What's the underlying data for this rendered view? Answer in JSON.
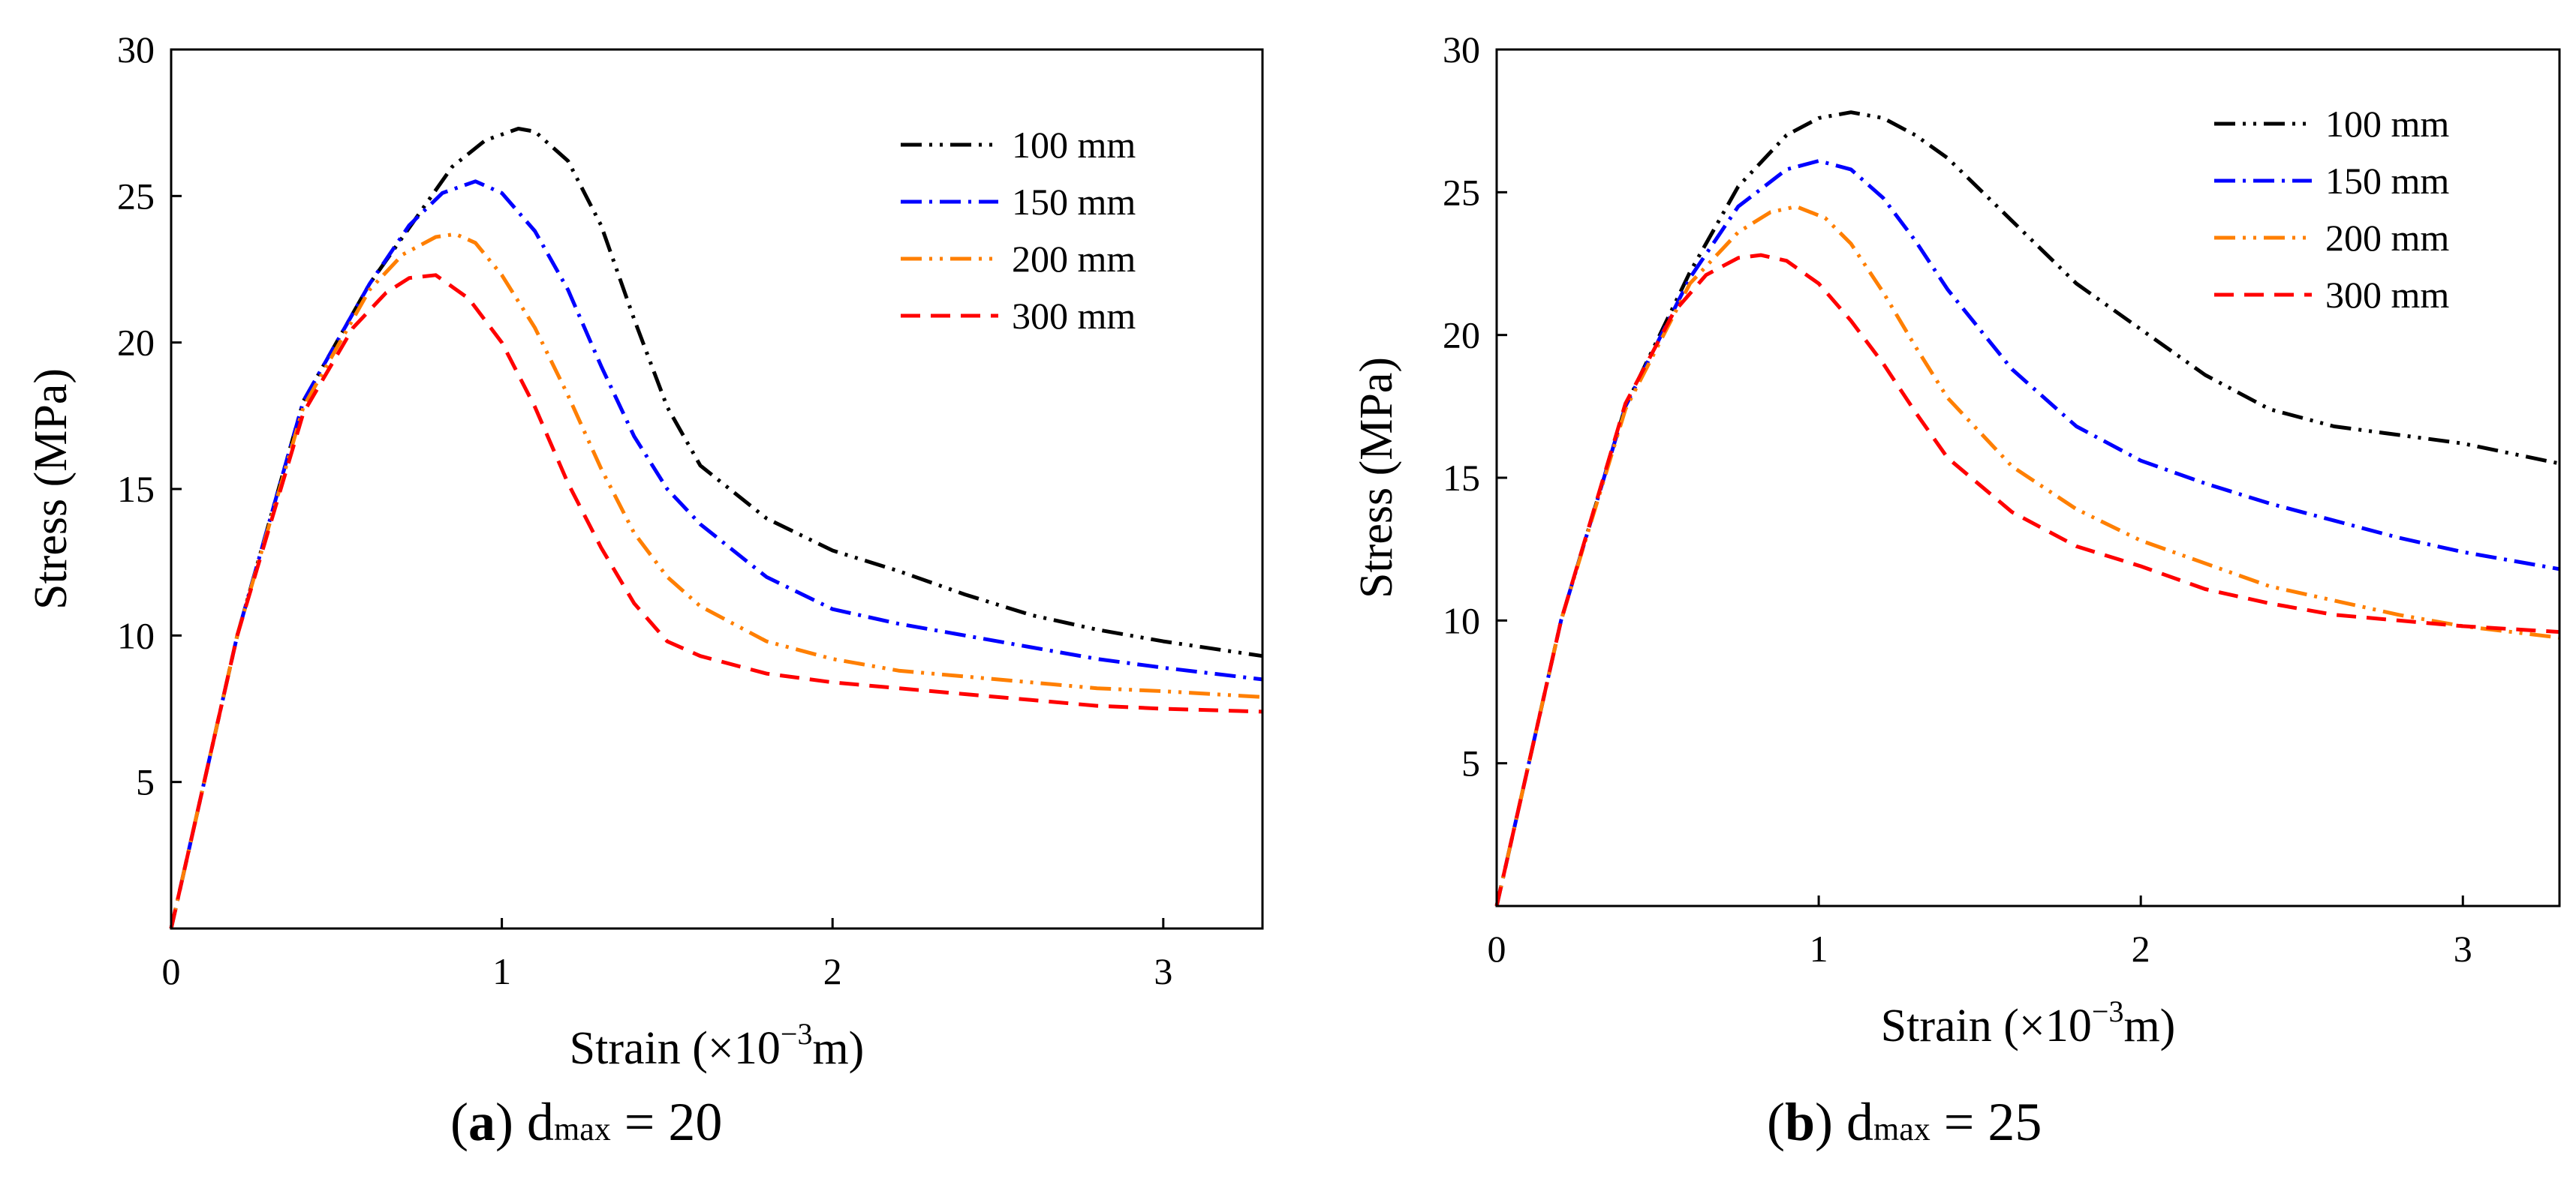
{
  "chart_data": [
    {
      "type": "line",
      "caption": {
        "open": "(",
        "letter": "a",
        "close": ")",
        "variable": "d",
        "subscript": "max",
        "rest": " = 20"
      },
      "xlabel": "Strain (×10",
      "xlabel_exp": "−3",
      "xlabel_end": "m)",
      "ylabel": "Stress (MPa)",
      "xlim": [
        0,
        3.3
      ],
      "ylim": [
        0,
        30
      ],
      "xticks": [
        "0",
        "1",
        "2",
        "3"
      ],
      "yticks": [
        "5",
        "10",
        "15",
        "20",
        "25",
        "30"
      ],
      "grid": false,
      "legend_position": "top-right",
      "series": [
        {
          "name": "100 mm",
          "color": "#000000",
          "dash": "dashdotdot",
          "points": [
            [
              0,
              0
            ],
            [
              0.2,
              10
            ],
            [
              0.4,
              18
            ],
            [
              0.6,
              22
            ],
            [
              0.75,
              24.4
            ],
            [
              0.85,
              26
            ],
            [
              0.95,
              26.9
            ],
            [
              1.05,
              27.3
            ],
            [
              1.1,
              27.2
            ],
            [
              1.2,
              26.2
            ],
            [
              1.3,
              24
            ],
            [
              1.4,
              20.8
            ],
            [
              1.5,
              17.8
            ],
            [
              1.6,
              15.8
            ],
            [
              1.8,
              14
            ],
            [
              2.0,
              12.9
            ],
            [
              2.2,
              12.2
            ],
            [
              2.4,
              11.4
            ],
            [
              2.6,
              10.7
            ],
            [
              2.8,
              10.2
            ],
            [
              3.0,
              9.8
            ],
            [
              3.3,
              9.3
            ]
          ]
        },
        {
          "name": "150 mm",
          "color": "#0000ff",
          "dash": "dashdot",
          "points": [
            [
              0,
              0
            ],
            [
              0.2,
              10
            ],
            [
              0.4,
              18
            ],
            [
              0.6,
              22
            ],
            [
              0.72,
              24
            ],
            [
              0.82,
              25.1
            ],
            [
              0.92,
              25.5
            ],
            [
              1.0,
              25.1
            ],
            [
              1.1,
              23.8
            ],
            [
              1.2,
              21.8
            ],
            [
              1.3,
              19.2
            ],
            [
              1.4,
              16.8
            ],
            [
              1.5,
              15
            ],
            [
              1.6,
              13.8
            ],
            [
              1.8,
              12
            ],
            [
              2.0,
              10.9
            ],
            [
              2.2,
              10.4
            ],
            [
              2.4,
              10
            ],
            [
              2.6,
              9.6
            ],
            [
              2.8,
              9.2
            ],
            [
              3.0,
              8.9
            ],
            [
              3.3,
              8.5
            ]
          ]
        },
        {
          "name": "200 mm",
          "color": "#ff7f00",
          "dash": "dashdotdot",
          "points": [
            [
              0,
              0
            ],
            [
              0.2,
              10
            ],
            [
              0.4,
              17.8
            ],
            [
              0.6,
              21.8
            ],
            [
              0.7,
              23
            ],
            [
              0.8,
              23.6
            ],
            [
              0.86,
              23.7
            ],
            [
              0.92,
              23.4
            ],
            [
              1.0,
              22.3
            ],
            [
              1.1,
              20.5
            ],
            [
              1.2,
              18.2
            ],
            [
              1.3,
              15.7
            ],
            [
              1.4,
              13.5
            ],
            [
              1.5,
              12
            ],
            [
              1.6,
              11
            ],
            [
              1.8,
              9.8
            ],
            [
              2.0,
              9.2
            ],
            [
              2.2,
              8.8
            ],
            [
              2.4,
              8.6
            ],
            [
              2.6,
              8.4
            ],
            [
              2.8,
              8.2
            ],
            [
              3.0,
              8.1
            ],
            [
              3.3,
              7.9
            ]
          ]
        },
        {
          "name": "300 mm",
          "color": "#ff0000",
          "dash": "dashed",
          "points": [
            [
              0,
              0
            ],
            [
              0.2,
              10
            ],
            [
              0.4,
              17.6
            ],
            [
              0.55,
              20.5
            ],
            [
              0.65,
              21.7
            ],
            [
              0.72,
              22.2
            ],
            [
              0.8,
              22.3
            ],
            [
              0.9,
              21.5
            ],
            [
              1.0,
              20
            ],
            [
              1.1,
              17.8
            ],
            [
              1.2,
              15.2
            ],
            [
              1.3,
              13
            ],
            [
              1.4,
              11.1
            ],
            [
              1.5,
              9.8
            ],
            [
              1.6,
              9.3
            ],
            [
              1.8,
              8.7
            ],
            [
              2.0,
              8.4
            ],
            [
              2.2,
              8.2
            ],
            [
              2.4,
              8
            ],
            [
              2.6,
              7.8
            ],
            [
              2.8,
              7.6
            ],
            [
              3.0,
              7.5
            ],
            [
              3.3,
              7.4
            ]
          ]
        }
      ]
    },
    {
      "type": "line",
      "caption": {
        "open": "(",
        "letter": "b",
        "close": ")",
        "variable": "d",
        "subscript": "max",
        "rest": " = 25"
      },
      "xlabel": "Strain (×10",
      "xlabel_exp": "−3",
      "xlabel_end": "m)",
      "ylabel": "Stress (MPa)",
      "xlim": [
        0,
        3.3
      ],
      "ylim": [
        0,
        30
      ],
      "xticks": [
        "0",
        "1",
        "2",
        "3"
      ],
      "yticks": [
        "5",
        "10",
        "15",
        "20",
        "25",
        "30"
      ],
      "grid": false,
      "legend_position": "top-right",
      "series": [
        {
          "name": "100 mm",
          "color": "#000000",
          "dash": "dashdotdot",
          "points": [
            [
              0,
              0
            ],
            [
              0.2,
              10
            ],
            [
              0.4,
              17.5
            ],
            [
              0.6,
              22.2
            ],
            [
              0.75,
              25.2
            ],
            [
              0.9,
              27
            ],
            [
              1.0,
              27.6
            ],
            [
              1.1,
              27.8
            ],
            [
              1.2,
              27.6
            ],
            [
              1.3,
              27
            ],
            [
              1.4,
              26.2
            ],
            [
              1.6,
              24
            ],
            [
              1.8,
              21.8
            ],
            [
              2.0,
              20.2
            ],
            [
              2.2,
              18.6
            ],
            [
              2.4,
              17.4
            ],
            [
              2.6,
              16.8
            ],
            [
              2.8,
              16.5
            ],
            [
              3.0,
              16.2
            ],
            [
              3.3,
              15.5
            ]
          ]
        },
        {
          "name": "150 mm",
          "color": "#0000ff",
          "dash": "dashdot",
          "points": [
            [
              0,
              0
            ],
            [
              0.2,
              10
            ],
            [
              0.4,
              17.5
            ],
            [
              0.6,
              22
            ],
            [
              0.75,
              24.5
            ],
            [
              0.9,
              25.8
            ],
            [
              1.0,
              26.1
            ],
            [
              1.1,
              25.8
            ],
            [
              1.2,
              24.8
            ],
            [
              1.3,
              23.3
            ],
            [
              1.4,
              21.6
            ],
            [
              1.6,
              18.8
            ],
            [
              1.8,
              16.8
            ],
            [
              2.0,
              15.6
            ],
            [
              2.2,
              14.8
            ],
            [
              2.4,
              14.1
            ],
            [
              2.6,
              13.5
            ],
            [
              2.8,
              12.9
            ],
            [
              3.0,
              12.4
            ],
            [
              3.3,
              11.8
            ]
          ]
        },
        {
          "name": "200 mm",
          "color": "#ff7f00",
          "dash": "dashdotdot",
          "points": [
            [
              0,
              0
            ],
            [
              0.2,
              10
            ],
            [
              0.4,
              17.4
            ],
            [
              0.6,
              21.8
            ],
            [
              0.75,
              23.6
            ],
            [
              0.85,
              24.3
            ],
            [
              0.93,
              24.5
            ],
            [
              1.02,
              24.1
            ],
            [
              1.1,
              23.2
            ],
            [
              1.2,
              21.5
            ],
            [
              1.3,
              19.6
            ],
            [
              1.4,
              17.8
            ],
            [
              1.6,
              15.4
            ],
            [
              1.8,
              13.9
            ],
            [
              2.0,
              12.8
            ],
            [
              2.2,
              12
            ],
            [
              2.4,
              11.2
            ],
            [
              2.6,
              10.7
            ],
            [
              2.8,
              10.2
            ],
            [
              3.0,
              9.8
            ],
            [
              3.3,
              9.4
            ]
          ]
        },
        {
          "name": "300 mm",
          "color": "#ff0000",
          "dash": "dashed",
          "points": [
            [
              0,
              0
            ],
            [
              0.2,
              10
            ],
            [
              0.4,
              17.6
            ],
            [
              0.55,
              20.8
            ],
            [
              0.65,
              22.1
            ],
            [
              0.75,
              22.7
            ],
            [
              0.82,
              22.8
            ],
            [
              0.9,
              22.6
            ],
            [
              1.0,
              21.8
            ],
            [
              1.1,
              20.5
            ],
            [
              1.2,
              19
            ],
            [
              1.3,
              17.3
            ],
            [
              1.4,
              15.7
            ],
            [
              1.6,
              13.8
            ],
            [
              1.8,
              12.6
            ],
            [
              2.0,
              11.9
            ],
            [
              2.2,
              11.1
            ],
            [
              2.4,
              10.6
            ],
            [
              2.6,
              10.2
            ],
            [
              2.8,
              10
            ],
            [
              3.0,
              9.8
            ],
            [
              3.3,
              9.6
            ]
          ]
        }
      ]
    }
  ]
}
